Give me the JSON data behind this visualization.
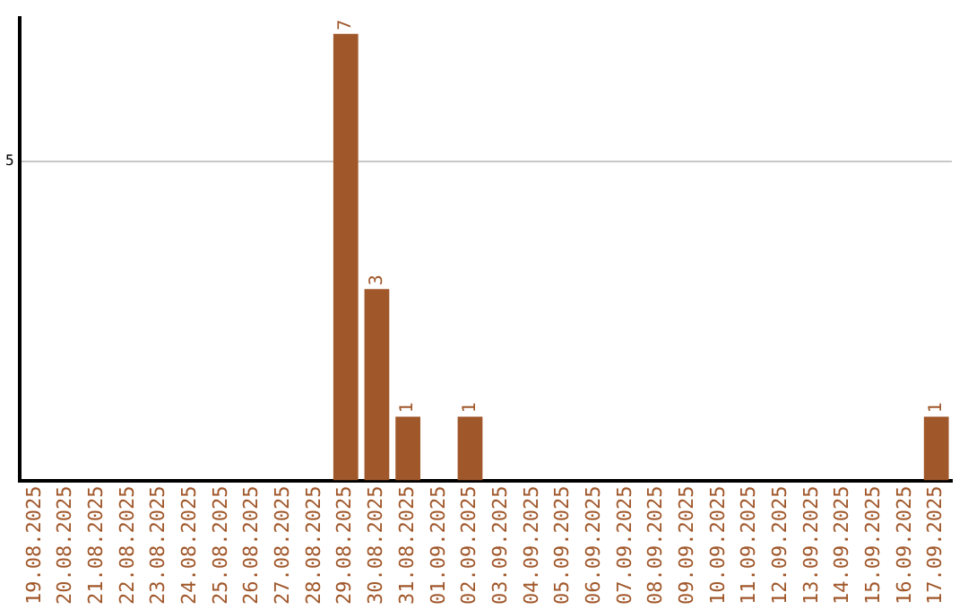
{
  "chart_data": {
    "type": "bar",
    "categories": [
      "19.08.2025",
      "20.08.2025",
      "21.08.2025",
      "22.08.2025",
      "23.08.2025",
      "24.08.2025",
      "25.08.2025",
      "26.08.2025",
      "27.08.2025",
      "28.08.2025",
      "29.08.2025",
      "30.08.2025",
      "31.08.2025",
      "01.09.2025",
      "02.09.2025",
      "03.09.2025",
      "04.09.2025",
      "05.09.2025",
      "06.09.2025",
      "07.09.2025",
      "08.09.2025",
      "09.09.2025",
      "10.09.2025",
      "11.09.2025",
      "12.09.2025",
      "13.09.2025",
      "14.09.2025",
      "15.09.2025",
      "16.09.2025",
      "17.09.2025"
    ],
    "values": [
      0,
      0,
      0,
      0,
      0,
      0,
      0,
      0,
      0,
      0,
      7,
      3,
      1,
      0,
      1,
      0,
      0,
      0,
      0,
      0,
      0,
      0,
      0,
      0,
      0,
      0,
      0,
      0,
      0,
      1
    ],
    "value_labels": [
      null,
      null,
      null,
      null,
      null,
      null,
      null,
      null,
      null,
      null,
      "7",
      "3",
      "1",
      null,
      "1",
      null,
      null,
      null,
      null,
      null,
      null,
      null,
      null,
      null,
      null,
      null,
      null,
      null,
      null,
      "1"
    ],
    "color": "#a0572a",
    "ylim": [
      0,
      7.25
    ],
    "yticks": [
      5
    ],
    "grid": "y",
    "legend": false
  }
}
